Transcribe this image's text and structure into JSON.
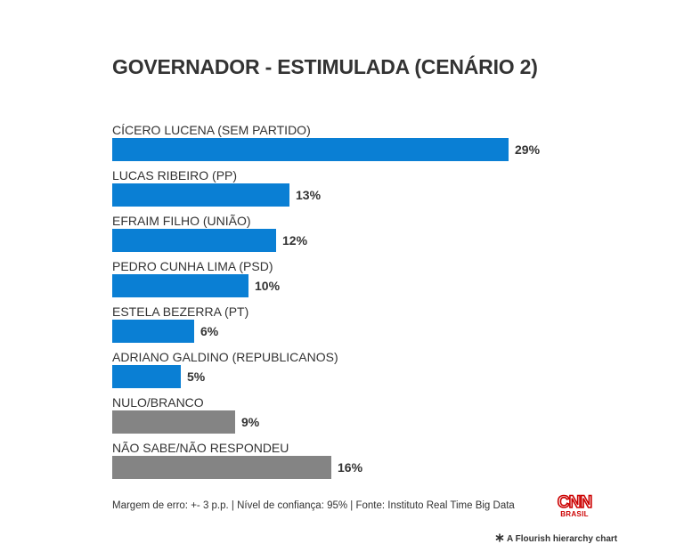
{
  "chart_data": {
    "type": "bar",
    "orientation": "horizontal",
    "title": "GOVERNADOR - ESTIMULADA (CENÁRIO 2)",
    "categories": [
      "CÍCERO LUCENA (SEM PARTIDO)",
      "LUCAS RIBEIRO (PP)",
      "EFRAIM FILHO (UNIÃO)",
      "PEDRO CUNHA LIMA (PSD)",
      "ESTELA BEZERRA (PT)",
      "ADRIANO GALDINO (REPUBLICANOS)",
      "NULO/BRANCO",
      "NÃO SABE/NÃO RESPONDEU"
    ],
    "values": [
      29,
      13,
      12,
      10,
      6,
      5,
      9,
      16
    ],
    "value_labels": [
      "29%",
      "13%",
      "12%",
      "10%",
      "6%",
      "5%",
      "9%",
      "16%"
    ],
    "bar_colors": [
      "#0a7fd4",
      "#0a7fd4",
      "#0a7fd4",
      "#0a7fd4",
      "#0a7fd4",
      "#0a7fd4",
      "#848484",
      "#848484"
    ],
    "xlim": [
      0,
      29
    ],
    "grid": false,
    "legend": "none"
  },
  "footer": {
    "note": "Margem de erro: +- 3 p.p. | Nível de confiança: 95% | Fonte: Instituto Real Time Big Data"
  },
  "brand": {
    "logo_text": "CNN",
    "logo_subtext": "BRASIL",
    "color": "#cc0000"
  },
  "credit": {
    "text": "A Flourish hierarchy chart"
  }
}
